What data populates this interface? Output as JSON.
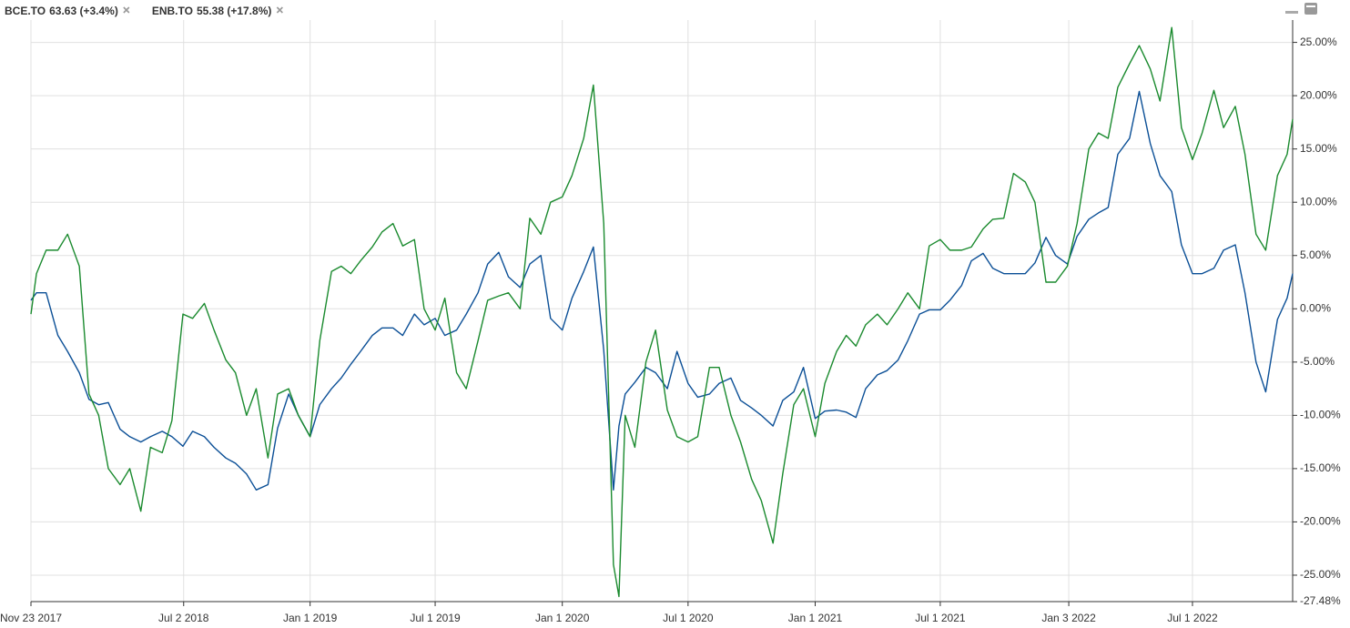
{
  "chart_data": {
    "type": "line",
    "legend": [
      {
        "name": "BCE.TO",
        "quote": "63.63 (+3.4%)"
      },
      {
        "name": "ENB.TO",
        "quote": "55.38 (+17.8%)"
      }
    ],
    "x": [
      "2017-11-23",
      "2017-12-01",
      "2017-12-15",
      "2018-01-01",
      "2018-01-15",
      "2018-02-01",
      "2018-02-15",
      "2018-03-01",
      "2018-03-15",
      "2018-04-01",
      "2018-04-15",
      "2018-05-01",
      "2018-05-15",
      "2018-06-01",
      "2018-06-15",
      "2018-07-01",
      "2018-07-15",
      "2018-08-01",
      "2018-08-15",
      "2018-09-01",
      "2018-09-15",
      "2018-10-01",
      "2018-10-15",
      "2018-11-01",
      "2018-11-15",
      "2018-12-01",
      "2018-12-15",
      "2019-01-01",
      "2019-01-15",
      "2019-02-01",
      "2019-02-15",
      "2019-03-01",
      "2019-03-15",
      "2019-04-01",
      "2019-04-15",
      "2019-05-01",
      "2019-05-15",
      "2019-06-01",
      "2019-06-15",
      "2019-07-01",
      "2019-07-15",
      "2019-08-01",
      "2019-08-15",
      "2019-09-01",
      "2019-09-15",
      "2019-10-01",
      "2019-10-15",
      "2019-11-01",
      "2019-11-15",
      "2019-12-01",
      "2019-12-15",
      "2020-01-01",
      "2020-01-15",
      "2020-02-01",
      "2020-02-15",
      "2020-03-01",
      "2020-03-15",
      "2020-03-23",
      "2020-04-01",
      "2020-04-15",
      "2020-05-01",
      "2020-05-15",
      "2020-06-01",
      "2020-06-15",
      "2020-07-01",
      "2020-07-15",
      "2020-08-01",
      "2020-08-15",
      "2020-09-01",
      "2020-09-15",
      "2020-10-01",
      "2020-10-15",
      "2020-11-01",
      "2020-11-15",
      "2020-12-01",
      "2020-12-15",
      "2021-01-01",
      "2021-01-15",
      "2021-02-01",
      "2021-02-15",
      "2021-03-01",
      "2021-03-15",
      "2021-04-01",
      "2021-04-15",
      "2021-05-01",
      "2021-05-15",
      "2021-06-01",
      "2021-06-15",
      "2021-07-01",
      "2021-07-15",
      "2021-08-01",
      "2021-08-15",
      "2021-09-01",
      "2021-09-15",
      "2021-10-01",
      "2021-10-15",
      "2021-11-01",
      "2021-11-15",
      "2021-12-01",
      "2021-12-15",
      "2022-01-01",
      "2022-01-15",
      "2022-02-01",
      "2022-02-15",
      "2022-03-01",
      "2022-03-15",
      "2022-04-01",
      "2022-04-15",
      "2022-05-01",
      "2022-05-15",
      "2022-06-01",
      "2022-06-15",
      "2022-07-01",
      "2022-07-15",
      "2022-08-01",
      "2022-08-15",
      "2022-09-01",
      "2022-09-15",
      "2022-10-01",
      "2022-10-15",
      "2022-11-01",
      "2022-11-15",
      "2022-11-23"
    ],
    "series": [
      {
        "name": "BCE.TO",
        "color": "#0b4f96",
        "values": [
          0.8,
          1.5,
          1.5,
          -2.5,
          -4,
          -6,
          -8.5,
          -9,
          -8.8,
          -11.3,
          -12,
          -12.5,
          -12,
          -11.5,
          -12,
          -12.9,
          -11.5,
          -12,
          -13,
          -14,
          -14.5,
          -15.5,
          -17,
          -16.5,
          -11.2,
          -8,
          -10,
          -12,
          -9,
          -7.5,
          -6.5,
          -5.2,
          -4,
          -2.5,
          -1.8,
          -1.8,
          -2.5,
          -0.5,
          -1.5,
          -0.9,
          -2.5,
          -2,
          -0.5,
          1.5,
          4.2,
          5.3,
          3,
          2,
          4.2,
          5,
          -0.9,
          -2,
          1,
          3.5,
          5.8,
          -3.9,
          -17,
          -11,
          -8,
          -6.9,
          -5.5,
          -6,
          -7.5,
          -4,
          -7,
          -8.3,
          -8,
          -7,
          -6.5,
          -8.6,
          -9.3,
          -10,
          -11,
          -8.6,
          -7.8,
          -5.5,
          -10.3,
          -9.6,
          -9.5,
          -9.7,
          -10.2,
          -7.5,
          -6.2,
          -5.8,
          -4.8,
          -3,
          -0.5,
          -0.1,
          -0.1,
          0.8,
          2.2,
          4.5,
          5.2,
          3.8,
          3.3,
          3.3,
          3.3,
          4.3,
          6.7,
          5,
          4.2,
          6.8,
          8.4,
          9,
          9.5,
          14.5,
          16,
          20.4,
          15.5,
          12.5,
          11,
          6,
          3.3,
          3.3,
          3.8,
          5.5,
          6,
          1.5,
          -5,
          -7.8,
          -1,
          1,
          3.3
        ]
      },
      {
        "name": "ENB.TO",
        "color": "#1a8a2e",
        "values": [
          -0.5,
          3.3,
          5.5,
          5.5,
          7,
          4,
          -8,
          -10,
          -15,
          -16.5,
          -15,
          -19,
          -13,
          -13.5,
          -10.5,
          -0.5,
          -0.9,
          0.5,
          -2,
          -4.8,
          -6,
          -10,
          -7.5,
          -14,
          -8,
          -7.5,
          -10,
          -12,
          -3,
          3.5,
          4,
          3.3,
          4.5,
          5.8,
          7.2,
          8,
          5.9,
          6.5,
          0,
          -2,
          1,
          -6,
          -7.5,
          -3,
          0.8,
          1.2,
          1.5,
          0,
          8.5,
          7,
          10,
          10.5,
          12.5,
          16,
          21,
          8,
          -24,
          -27,
          -10,
          -13,
          -5,
          -2,
          -9.5,
          -12,
          -12.5,
          -12,
          -5.5,
          -5.5,
          -10,
          -12.5,
          -16,
          -18,
          -22,
          -15.5,
          -9,
          -7.5,
          -12,
          -7,
          -4,
          -2.5,
          -3.5,
          -1.5,
          -0.5,
          -1.5,
          0,
          1.5,
          0,
          5.9,
          6.5,
          5.5,
          5.5,
          5.8,
          7.5,
          8.4,
          8.5,
          12.7,
          11.9,
          10,
          2.5,
          2.5,
          4,
          8,
          15,
          16.5,
          16,
          20.8,
          23,
          24.7,
          22.5,
          19.5,
          26.4,
          17,
          14,
          16.5,
          20.5,
          17,
          19,
          14.5,
          7,
          5.5,
          12.5,
          14.5,
          17.8
        ]
      }
    ],
    "xlim": [
      "2017-11-23",
      "2022-11-23"
    ],
    "xticks": [
      {
        "value": "2017-11-23",
        "label": "Nov 23 2017"
      },
      {
        "value": "2018-07-02",
        "label": "Jul 2 2018"
      },
      {
        "value": "2019-01-01",
        "label": "Jan 1 2019"
      },
      {
        "value": "2019-07-01",
        "label": "Jul 1 2019"
      },
      {
        "value": "2020-01-01",
        "label": "Jan 1 2020"
      },
      {
        "value": "2020-07-01",
        "label": "Jul 1 2020"
      },
      {
        "value": "2021-01-01",
        "label": "Jan 1 2021"
      },
      {
        "value": "2021-07-01",
        "label": "Jul 1 2021"
      },
      {
        "value": "2022-01-03",
        "label": "Jan 3 2022"
      },
      {
        "value": "2022-07-01",
        "label": "Jul 1 2022"
      }
    ],
    "ylim": [
      -27.48,
      27.1
    ],
    "yticks": [
      {
        "value": 25,
        "label": "25.00%"
      },
      {
        "value": 20,
        "label": "20.00%"
      },
      {
        "value": 15,
        "label": "15.00%"
      },
      {
        "value": 10,
        "label": "10.00%"
      },
      {
        "value": 5,
        "label": "5.00%"
      },
      {
        "value": 0,
        "label": "0.00%"
      },
      {
        "value": -5,
        "label": "-5.00%"
      },
      {
        "value": -10,
        "label": "-10.00%"
      },
      {
        "value": -15,
        "label": "-15.00%"
      },
      {
        "value": -20,
        "label": "-20.00%"
      },
      {
        "value": -25,
        "label": "-25.00%"
      },
      {
        "value": -27.48,
        "label": "-27.48%"
      }
    ],
    "grid": true
  }
}
